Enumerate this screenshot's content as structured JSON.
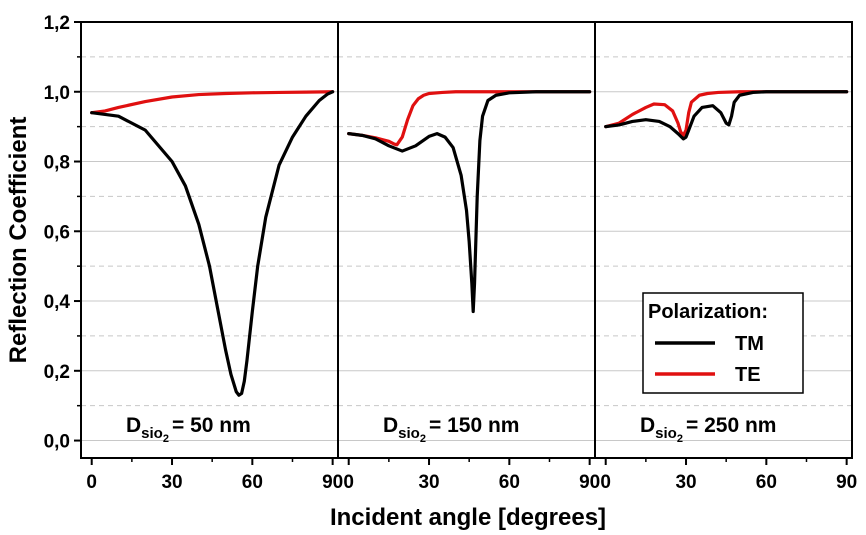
{
  "chart_data": {
    "type": "line",
    "ylabel": "Reflection Coefficient",
    "xlabel": "Incident angle [degrees]",
    "ylim": [
      -0.05,
      1.2
    ],
    "xlim": [
      -4,
      92
    ],
    "y_ticks": [
      "0,0",
      "0,2",
      "0,4",
      "0,6",
      "0,8",
      "1,0",
      "1,2"
    ],
    "x_ticks": [
      "0",
      "30",
      "60",
      "90"
    ],
    "grid": "horizontal",
    "legend": {
      "title": "Polarization:",
      "placement": "bottom-right",
      "entries": [
        {
          "name": "TM",
          "color": "#000000"
        },
        {
          "name": "TE",
          "color": "#e01010"
        }
      ]
    },
    "panels": [
      {
        "label_prefix": "D",
        "label_sub": "sio",
        "label_subsub": "2",
        "label_suffix": "= 50 nm",
        "series": [
          {
            "name": "TM",
            "color": "#000000",
            "x": [
              0,
              10,
              20,
              30,
              35,
              40,
              44,
              47,
              50,
              52,
              54,
              55,
              56,
              57,
              58,
              60,
              62,
              65,
              70,
              75,
              80,
              85,
              88,
              90
            ],
            "y": [
              0.94,
              0.93,
              0.89,
              0.8,
              0.73,
              0.62,
              0.5,
              0.38,
              0.26,
              0.19,
              0.14,
              0.13,
              0.135,
              0.17,
              0.23,
              0.37,
              0.5,
              0.64,
              0.79,
              0.87,
              0.93,
              0.975,
              0.993,
              1.0
            ]
          },
          {
            "name": "TE",
            "color": "#e01010",
            "x": [
              0,
              5,
              10,
              20,
              30,
              40,
              50,
              60,
              70,
              80,
              90
            ],
            "y": [
              0.94,
              0.945,
              0.955,
              0.972,
              0.985,
              0.992,
              0.995,
              0.997,
              0.998,
              0.999,
              1.0
            ]
          }
        ]
      },
      {
        "label_prefix": "D",
        "label_sub": "sio",
        "label_subsub": "2",
        "label_suffix": "= 150 nm",
        "series": [
          {
            "name": "TM",
            "color": "#000000",
            "x": [
              0,
              5,
              10,
              15,
              20,
              25,
              30,
              33,
              36,
              39,
              42,
              44,
              45,
              46,
              46.5,
              47,
              48,
              49,
              50,
              52,
              55,
              60,
              70,
              80,
              90
            ],
            "y": [
              0.88,
              0.875,
              0.865,
              0.845,
              0.83,
              0.845,
              0.872,
              0.88,
              0.87,
              0.84,
              0.76,
              0.66,
              0.57,
              0.45,
              0.37,
              0.45,
              0.7,
              0.86,
              0.93,
              0.975,
              0.99,
              0.997,
              1.0,
              1.0,
              1.0
            ]
          },
          {
            "name": "TE",
            "color": "#e01010",
            "x": [
              0,
              5,
              10,
              15,
              17,
              18,
              20,
              22,
              24,
              26,
              28,
              30,
              35,
              40,
              50,
              60,
              90
            ],
            "y": [
              0.88,
              0.875,
              0.868,
              0.858,
              0.85,
              0.848,
              0.87,
              0.92,
              0.96,
              0.98,
              0.99,
              0.995,
              0.998,
              1.0,
              1.0,
              1.0,
              1.0
            ]
          }
        ]
      },
      {
        "label_prefix": "D",
        "label_sub": "sio",
        "label_subsub": "2",
        "label_suffix": "= 250 nm",
        "series": [
          {
            "name": "TM",
            "color": "#000000",
            "x": [
              0,
              5,
              10,
              15,
              20,
              24,
              27,
              29,
              30,
              31,
              33,
              36,
              40,
              43,
              45,
              46,
              47,
              48,
              50,
              55,
              60,
              70,
              90
            ],
            "y": [
              0.9,
              0.905,
              0.915,
              0.92,
              0.915,
              0.9,
              0.88,
              0.865,
              0.87,
              0.89,
              0.93,
              0.955,
              0.96,
              0.94,
              0.91,
              0.905,
              0.93,
              0.97,
              0.99,
              0.998,
              1.0,
              1.0,
              1.0
            ]
          },
          {
            "name": "TE",
            "color": "#e01010",
            "x": [
              0,
              5,
              10,
              15,
              18,
              22,
              25,
              27,
              28,
              29,
              30,
              31,
              32,
              35,
              38,
              42,
              50,
              60,
              90
            ],
            "y": [
              0.9,
              0.91,
              0.935,
              0.955,
              0.965,
              0.963,
              0.945,
              0.91,
              0.885,
              0.875,
              0.89,
              0.94,
              0.97,
              0.99,
              0.995,
              0.998,
              1.0,
              1.0,
              1.0
            ]
          }
        ]
      }
    ]
  }
}
